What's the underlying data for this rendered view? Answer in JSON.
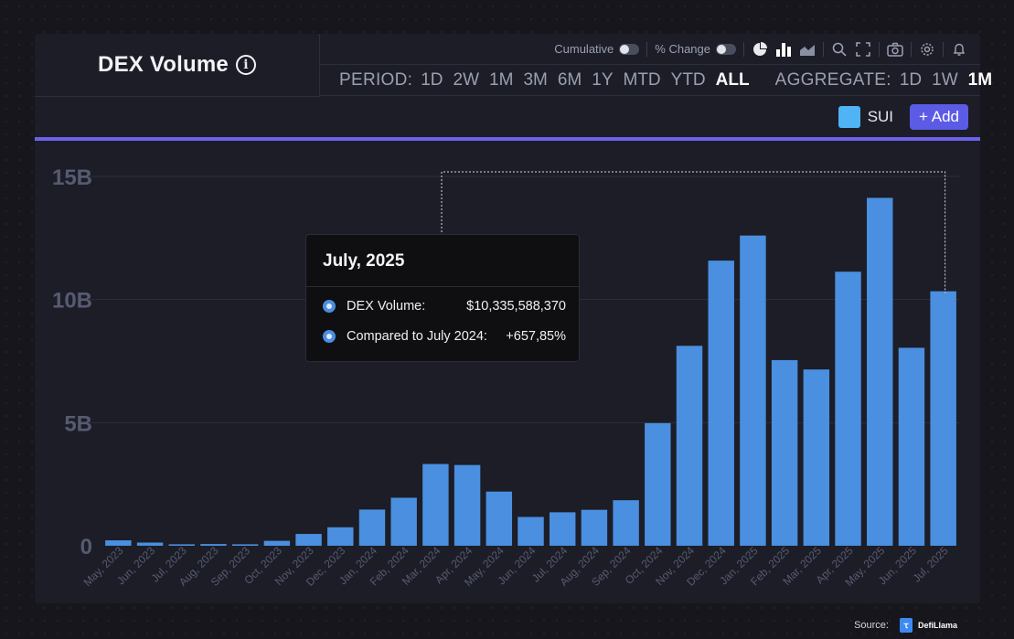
{
  "header": {
    "title": "DEX Volume",
    "info_symbol": "i"
  },
  "toolbar": {
    "cumulative_label": "Cumulative",
    "pct_change_label": "% Change"
  },
  "period": {
    "label": "PERIOD:",
    "options": [
      "1D",
      "2W",
      "1M",
      "3M",
      "6M",
      "1Y",
      "MTD",
      "YTD",
      "ALL"
    ],
    "active": "ALL"
  },
  "aggregate": {
    "label": "AGGREGATE:",
    "options": [
      "1D",
      "1W",
      "1M"
    ],
    "active": "1M"
  },
  "legend": {
    "series_name": "SUI",
    "add_label": "+ Add"
  },
  "colors": {
    "bar": "#4a8fe0",
    "accent": "#6c62ec",
    "swatch": "#4fb3f6",
    "add_button": "#5b5be6"
  },
  "tooltip": {
    "title": "July, 2025",
    "rows": [
      {
        "label": "DEX Volume:",
        "value": "$10,335,588,370"
      },
      {
        "label": "Compared to July 2024:",
        "value": "+657,85%"
      }
    ]
  },
  "source": {
    "label": "Source:",
    "brand": "DefiLlama"
  },
  "chart_data": {
    "type": "bar",
    "title": "DEX Volume",
    "ylim": [
      0,
      15000000000
    ],
    "yticks": [
      0,
      5000000000,
      10000000000,
      15000000000
    ],
    "ytick_labels": [
      "0",
      "5B",
      "10B",
      "15B"
    ],
    "grid": true,
    "highlighted_category": "Jul, 2025",
    "categories": [
      "May, 2023",
      "Jun, 2023",
      "Jul, 2023",
      "Aug, 2023",
      "Sep, 2023",
      "Oct, 2023",
      "Nov, 2023",
      "Dec, 2023",
      "Jan, 2024",
      "Feb, 2024",
      "Mar, 2024",
      "Apr, 2024",
      "May, 2024",
      "Jun, 2024",
      "Jul, 2024",
      "Aug, 2024",
      "Sep, 2024",
      "Oct, 2024",
      "Nov, 2024",
      "Dec, 2024",
      "Jan, 2025",
      "Feb, 2025",
      "Mar, 2025",
      "Apr, 2025",
      "May, 2025",
      "Jun, 2025",
      "Jul, 2025"
    ],
    "series": [
      {
        "name": "SUI",
        "values": [
          220000000,
          130000000,
          60000000,
          70000000,
          60000000,
          200000000,
          480000000,
          750000000,
          1470000000,
          1950000000,
          3320000000,
          3280000000,
          2200000000,
          1170000000,
          1360000000,
          1460000000,
          1850000000,
          4980000000,
          8120000000,
          11580000000,
          12600000000,
          7540000000,
          7160000000,
          11130000000,
          14130000000,
          8040000000,
          10335588370
        ]
      }
    ]
  }
}
